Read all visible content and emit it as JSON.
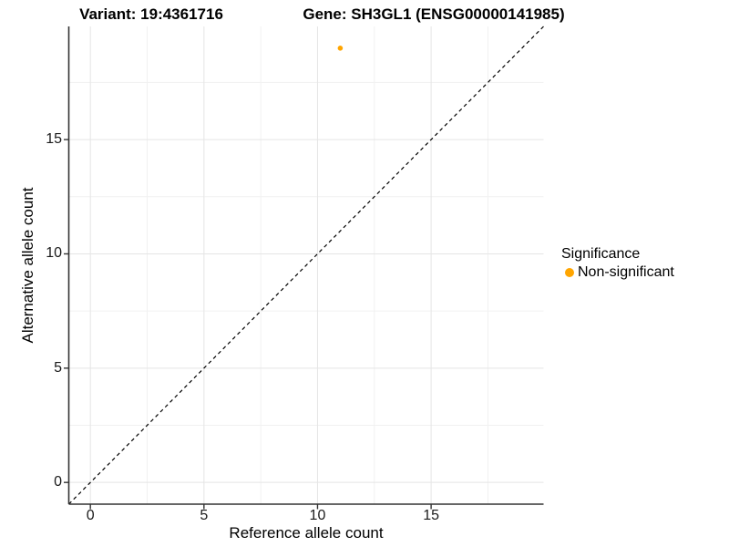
{
  "titles": {
    "variant": "Variant: 19:4361716",
    "gene": "Gene: SH3GL1 (ENSG00000141985)"
  },
  "chart_data": {
    "type": "scatter",
    "xlabel": "Reference allele count",
    "ylabel": "Alternative allele count",
    "xlim": [
      -0.95,
      19.95
    ],
    "ylim": [
      -0.95,
      19.95
    ],
    "xticks": [
      0,
      5,
      10,
      15
    ],
    "yticks": [
      0,
      5,
      10,
      15
    ],
    "xticks_minor": [
      2.5,
      7.5,
      12.5,
      17.5
    ],
    "yticks_minor": [
      2.5,
      7.5,
      12.5,
      17.5
    ],
    "grid": "major+minor",
    "points": [
      {
        "x": 11,
        "y": 19,
        "series": "Non-significant"
      }
    ],
    "reference_line": {
      "kind": "identity",
      "style": "dashed",
      "x1": -0.95,
      "y1": -0.95,
      "x2": 19.95,
      "y2": 19.95
    },
    "legend": {
      "title": "Significance",
      "position": "right",
      "entries": [
        {
          "label": "Non-significant",
          "color": "#FFA500"
        }
      ]
    }
  },
  "colors": {
    "point": "#FFA500",
    "axis_line": "#333333",
    "grid_major": "#E5E5E5",
    "grid_minor": "#F1F1F1",
    "reference_line": "#000000",
    "background": "#FFFFFF"
  }
}
